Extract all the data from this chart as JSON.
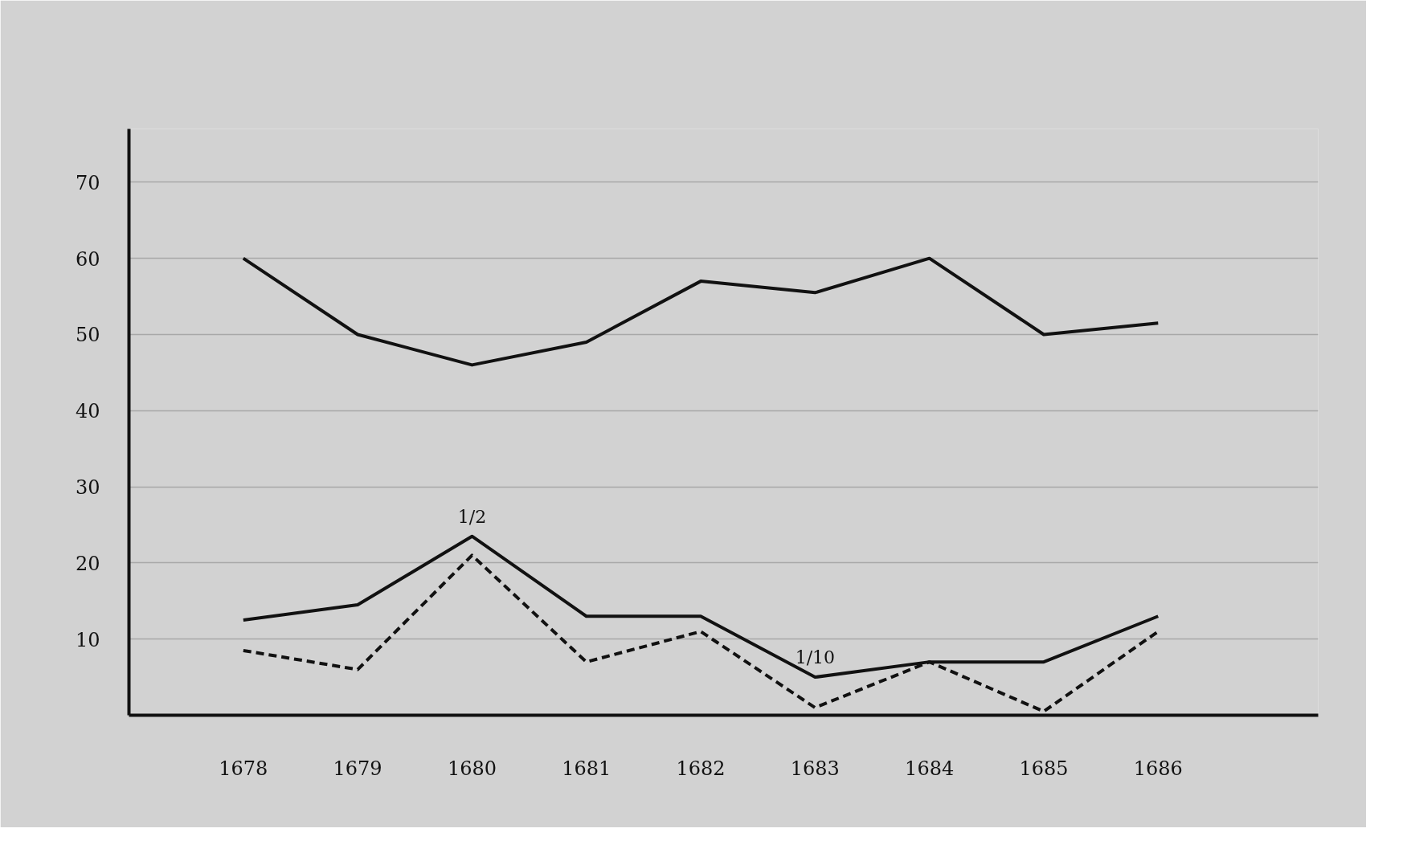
{
  "chart_data": {
    "type": "line",
    "categories": [
      "1678",
      "1679",
      "1680",
      "1681",
      "1682",
      "1683",
      "1684",
      "1685",
      "1686"
    ],
    "series": [
      {
        "color": "#111111",
        "line_style": "solid",
        "values": [
          60,
          50,
          46,
          49,
          57,
          55.5,
          60,
          50,
          51.5
        ]
      },
      {
        "color": "#111111",
        "line_style": "solid",
        "values": [
          12.5,
          14.5,
          23.5,
          13,
          13,
          5,
          7,
          7,
          13
        ]
      },
      {
        "color": "#111111",
        "line_style": "dashed",
        "values": [
          8.5,
          6,
          21,
          7,
          11,
          1,
          7,
          0.5,
          11
        ]
      }
    ],
    "annotations": [
      {
        "text": "1/2",
        "x": "1680",
        "y": 23.5
      },
      {
        "text": "1/10",
        "x": "1683",
        "y": 5
      }
    ],
    "ylim": [
      0,
      77
    ],
    "yticks": [
      10,
      20,
      30,
      40,
      50,
      60,
      70
    ],
    "grid": "y",
    "marker": "none"
  }
}
